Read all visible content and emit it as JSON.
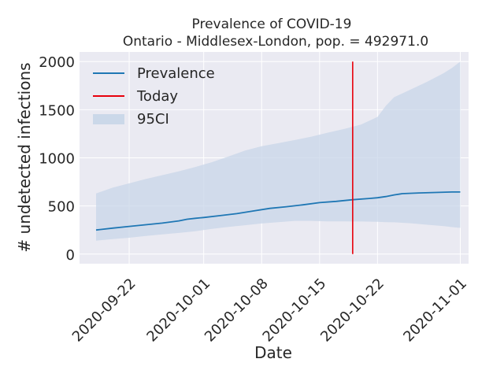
{
  "chart_data": {
    "type": "line",
    "title": "Prevalence of COVID-19",
    "subtitle": "Ontario - Middlesex-London, pop. = 492971.0",
    "xlabel": "Date",
    "ylabel": "# undetected infections",
    "xlim": [
      "2020-09-16",
      "2020-11-02"
    ],
    "ylim": [
      -100,
      2100
    ],
    "yticks": [
      0,
      500,
      1000,
      1500,
      2000
    ],
    "xticks": [
      "2020-09-22",
      "2020-10-01",
      "2020-10-08",
      "2020-10-15",
      "2020-10-22",
      "2020-11-01"
    ],
    "grid": true,
    "legend_placement": "top-left",
    "colors": {
      "prevalence": "#1f77b4",
      "today": "#e8000b",
      "ci": "#c8d6e8",
      "plot_bg": "#eaeaf2",
      "grid": "#ffffff"
    },
    "legend": [
      {
        "label": "Prevalence",
        "kind": "line",
        "color": "#1f77b4"
      },
      {
        "label": "Today",
        "kind": "line",
        "color": "#e8000b"
      },
      {
        "label": "95CI",
        "kind": "patch",
        "color": "#c8d6e8"
      }
    ],
    "series": [
      {
        "name": "Prevalence",
        "points": [
          {
            "x": "2020-09-18",
            "y": 250
          },
          {
            "x": "2020-09-20",
            "y": 270
          },
          {
            "x": "2020-09-22",
            "y": 288
          },
          {
            "x": "2020-09-24",
            "y": 305
          },
          {
            "x": "2020-09-26",
            "y": 322
          },
          {
            "x": "2020-09-28",
            "y": 345
          },
          {
            "x": "2020-09-29",
            "y": 362
          },
          {
            "x": "2020-09-30",
            "y": 372
          },
          {
            "x": "2020-10-01",
            "y": 380
          },
          {
            "x": "2020-10-03",
            "y": 400
          },
          {
            "x": "2020-10-05",
            "y": 420
          },
          {
            "x": "2020-10-07",
            "y": 448
          },
          {
            "x": "2020-10-09",
            "y": 475
          },
          {
            "x": "2020-10-11",
            "y": 492
          },
          {
            "x": "2020-10-13",
            "y": 512
          },
          {
            "x": "2020-10-15",
            "y": 535
          },
          {
            "x": "2020-10-17",
            "y": 548
          },
          {
            "x": "2020-10-19",
            "y": 565
          },
          {
            "x": "2020-10-21",
            "y": 578
          },
          {
            "x": "2020-10-22",
            "y": 585
          },
          {
            "x": "2020-10-23",
            "y": 598
          },
          {
            "x": "2020-10-24",
            "y": 615
          },
          {
            "x": "2020-10-25",
            "y": 628
          },
          {
            "x": "2020-10-27",
            "y": 635
          },
          {
            "x": "2020-10-29",
            "y": 640
          },
          {
            "x": "2020-10-31",
            "y": 645
          },
          {
            "x": "2020-11-01",
            "y": 645
          }
        ]
      },
      {
        "name": "95CI",
        "points": [
          {
            "x": "2020-09-18",
            "lower": 140,
            "upper": 630
          },
          {
            "x": "2020-09-20",
            "lower": 155,
            "upper": 690
          },
          {
            "x": "2020-09-22",
            "lower": 170,
            "upper": 735
          },
          {
            "x": "2020-09-24",
            "lower": 188,
            "upper": 780
          },
          {
            "x": "2020-09-26",
            "lower": 205,
            "upper": 820
          },
          {
            "x": "2020-09-28",
            "lower": 220,
            "upper": 860
          },
          {
            "x": "2020-09-30",
            "lower": 238,
            "upper": 905
          },
          {
            "x": "2020-10-02",
            "lower": 262,
            "upper": 955
          },
          {
            "x": "2020-10-04",
            "lower": 282,
            "upper": 1015
          },
          {
            "x": "2020-10-06",
            "lower": 300,
            "upper": 1075
          },
          {
            "x": "2020-10-08",
            "lower": 318,
            "upper": 1120
          },
          {
            "x": "2020-10-10",
            "lower": 332,
            "upper": 1152
          },
          {
            "x": "2020-10-12",
            "lower": 345,
            "upper": 1185
          },
          {
            "x": "2020-10-14",
            "lower": 345,
            "upper": 1220
          },
          {
            "x": "2020-10-16",
            "lower": 340,
            "upper": 1262
          },
          {
            "x": "2020-10-18",
            "lower": 340,
            "upper": 1300
          },
          {
            "x": "2020-10-20",
            "lower": 338,
            "upper": 1345
          },
          {
            "x": "2020-10-22",
            "lower": 335,
            "upper": 1425
          },
          {
            "x": "2020-10-23",
            "lower": 332,
            "upper": 1540
          },
          {
            "x": "2020-10-24",
            "lower": 330,
            "upper": 1630
          },
          {
            "x": "2020-10-26",
            "lower": 320,
            "upper": 1710
          },
          {
            "x": "2020-10-28",
            "lower": 305,
            "upper": 1790
          },
          {
            "x": "2020-10-30",
            "lower": 290,
            "upper": 1880
          },
          {
            "x": "2020-10-31",
            "lower": 280,
            "upper": 1935
          },
          {
            "x": "2020-11-01",
            "lower": 272,
            "upper": 2000
          }
        ]
      }
    ],
    "today": {
      "x": "2020-10-19",
      "ymin": 0,
      "ymax": 2000
    }
  }
}
